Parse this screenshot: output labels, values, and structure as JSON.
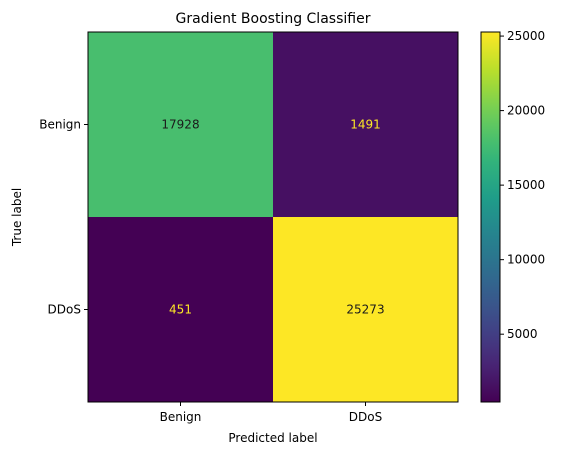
{
  "chart_data": {
    "type": "heatmap",
    "title": "Gradient Boosting Classifier",
    "xlabel": "Predicted label",
    "ylabel": "True label",
    "x_categories": [
      "Benign",
      "DDoS"
    ],
    "y_categories": [
      "Benign",
      "DDoS"
    ],
    "matrix": [
      [
        17928,
        1491
      ],
      [
        451,
        25273
      ]
    ],
    "colormap": "viridis",
    "colorbar": {
      "range": [
        451,
        25273
      ],
      "ticks": [
        5000,
        10000,
        15000,
        20000,
        25000
      ]
    },
    "grid": false
  }
}
